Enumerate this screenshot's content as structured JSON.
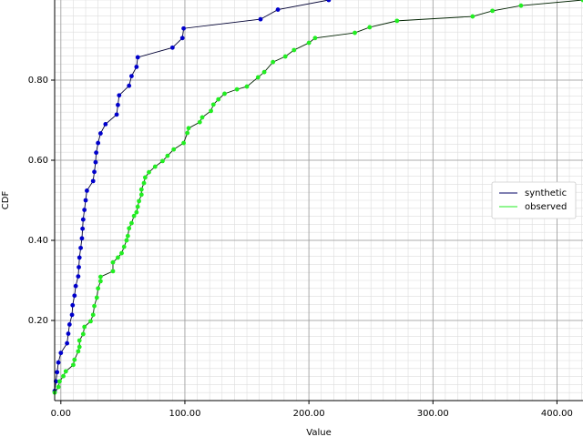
{
  "chart_data": {
    "type": "line",
    "x_label": "Value",
    "y_label": "CDF",
    "xlim": [
      -5,
      421
    ],
    "ylim": [
      0,
      1.0
    ],
    "xticks": [
      {
        "value": 0,
        "label": "0.00"
      },
      {
        "value": 100,
        "label": "100.00"
      },
      {
        "value": 200,
        "label": "200.00"
      },
      {
        "value": 300,
        "label": "300.00"
      },
      {
        "value": 400,
        "label": "400.00"
      }
    ],
    "yticks": [
      {
        "value": 0.2,
        "label": "0.20"
      },
      {
        "value": 0.4,
        "label": "0.40"
      },
      {
        "value": 0.6,
        "label": "0.60"
      },
      {
        "value": 0.8,
        "label": "0.80"
      }
    ],
    "grid": true,
    "minor_grid": true,
    "legend": "right",
    "series": [
      {
        "name": "synthetic",
        "color": "#0000cc",
        "line_color": "#000033",
        "x": [
          -5,
          -4,
          -3,
          -2,
          0,
          5,
          6,
          7,
          9,
          9.5,
          11,
          12,
          14,
          14.5,
          15,
          16,
          17,
          17.5,
          18,
          19,
          20,
          21,
          26,
          27,
          28,
          28.5,
          30,
          32,
          36,
          45,
          46,
          47,
          55,
          57,
          61,
          62,
          90,
          98,
          99,
          161,
          175,
          216
        ],
        "values": [
          0.024,
          0.048,
          0.071,
          0.095,
          0.119,
          0.143,
          0.167,
          0.19,
          0.214,
          0.238,
          0.262,
          0.286,
          0.31,
          0.333,
          0.357,
          0.381,
          0.405,
          0.429,
          0.452,
          0.476,
          0.5,
          0.524,
          0.548,
          0.571,
          0.595,
          0.619,
          0.643,
          0.667,
          0.69,
          0.714,
          0.738,
          0.762,
          0.786,
          0.81,
          0.833,
          0.857,
          0.881,
          0.905,
          0.929,
          0.952,
          0.976,
          1.0
        ]
      },
      {
        "name": "observed",
        "color": "#22ee22",
        "line_color": "#002200",
        "x": [
          -5,
          -2,
          -1,
          2,
          4,
          10,
          11,
          14,
          15,
          15,
          18,
          19,
          24,
          26,
          27,
          29,
          30,
          32,
          32,
          42,
          42,
          46,
          49,
          51,
          53,
          54,
          55,
          57,
          59,
          61,
          62,
          63,
          65,
          65,
          67,
          68,
          71,
          76,
          82,
          86,
          91,
          99,
          102,
          103,
          112,
          114,
          121,
          123,
          127,
          132,
          142,
          150,
          159,
          164,
          171,
          181,
          188,
          200,
          205,
          237,
          249,
          271,
          332,
          348,
          371,
          421
        ],
        "values": [
          0.02,
          0.034,
          0.048,
          0.061,
          0.073,
          0.089,
          0.102,
          0.123,
          0.134,
          0.15,
          0.166,
          0.184,
          0.198,
          0.214,
          0.236,
          0.257,
          0.28,
          0.298,
          0.309,
          0.323,
          0.345,
          0.357,
          0.368,
          0.384,
          0.4,
          0.411,
          0.43,
          0.443,
          0.461,
          0.47,
          0.484,
          0.498,
          0.514,
          0.527,
          0.543,
          0.557,
          0.57,
          0.584,
          0.598,
          0.611,
          0.627,
          0.643,
          0.668,
          0.68,
          0.695,
          0.707,
          0.723,
          0.739,
          0.752,
          0.766,
          0.777,
          0.784,
          0.807,
          0.82,
          0.845,
          0.859,
          0.875,
          0.893,
          0.905,
          0.918,
          0.932,
          0.948,
          0.959,
          0.973,
          0.986,
          1.0
        ]
      }
    ]
  }
}
